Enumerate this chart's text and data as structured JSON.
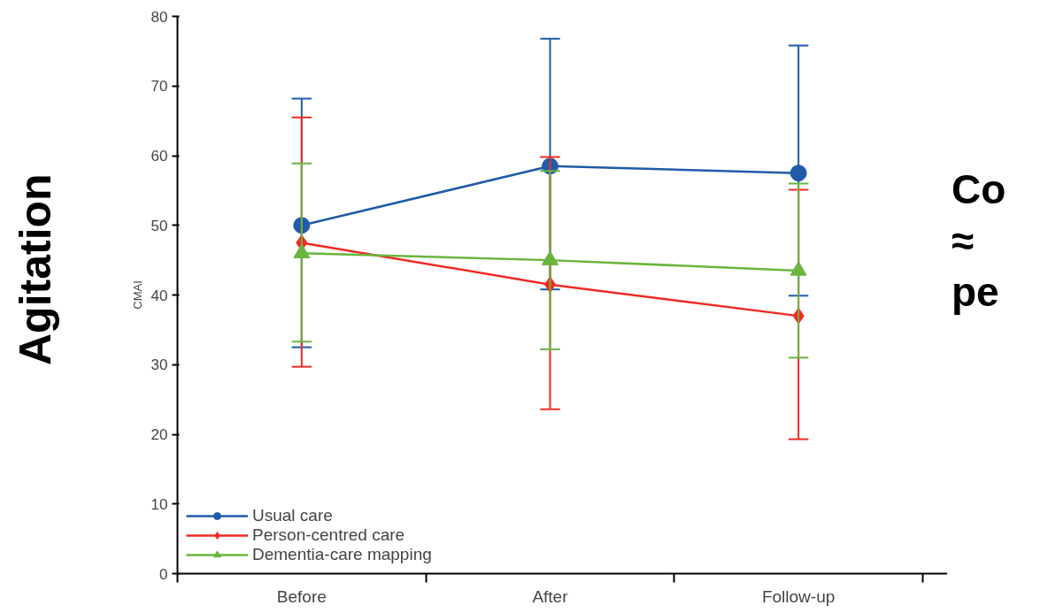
{
  "chart_data": {
    "type": "line",
    "ylabel": "CMAI",
    "categories": [
      "Before",
      "After",
      "Follow-up"
    ],
    "ylim": [
      0,
      80
    ],
    "yticks": [
      0,
      10,
      20,
      30,
      40,
      50,
      60,
      70,
      80
    ],
    "series": [
      {
        "name": "Usual care",
        "color": "#1f5ba8",
        "marker": "circle",
        "values": [
          50,
          58.5,
          57.5
        ],
        "errors": [
          [
            32.5,
            68.2
          ],
          [
            40.8,
            76.8
          ],
          [
            39.9,
            75.8
          ]
        ]
      },
      {
        "name": "Person-centred care",
        "color": "#ee2b24",
        "marker": "diamond",
        "values": [
          47.5,
          41.5,
          37
        ],
        "errors": [
          [
            29.7,
            65.5
          ],
          [
            23.6,
            59.8
          ],
          [
            19.3,
            55.1
          ]
        ]
      },
      {
        "name": "Dementia-care mapping",
        "color": "#6ab43e",
        "marker": "triangle",
        "values": [
          46,
          45,
          43.5
        ],
        "errors": [
          [
            33.3,
            58.9
          ],
          [
            32.2,
            57.8
          ],
          [
            31,
            56
          ]
        ]
      }
    ],
    "annotations": [
      "Agitation",
      "Co",
      "≈",
      "pe"
    ],
    "legend": "bottom left",
    "grid": false
  }
}
